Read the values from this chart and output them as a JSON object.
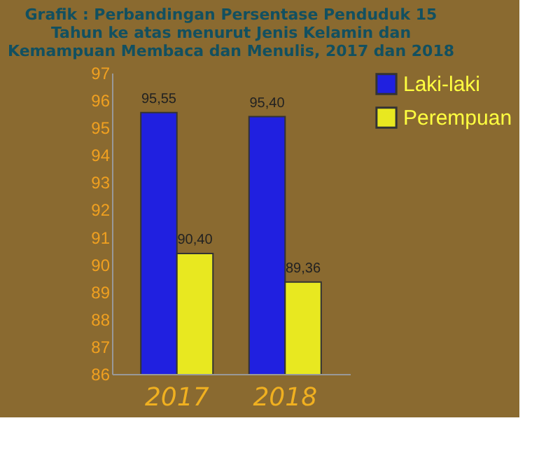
{
  "chart_data": {
    "type": "bar",
    "title": "Grafik : Perbandingan Persentase Penduduk 15\nTahun ke atas menurut Jenis Kelamin dan\nKemampuan Membaca dan Menulis, 2017 dan 2018",
    "categories": [
      "2017",
      "2018"
    ],
    "series": [
      {
        "name": "Laki-laki",
        "color": "#2020e0",
        "values": [
          95.55,
          95.4
        ],
        "value_labels": [
          "95,55",
          "95,40"
        ]
      },
      {
        "name": "Perempuan",
        "color": "#e8e820",
        "values": [
          90.4,
          89.36
        ],
        "value_labels": [
          "90,40",
          "89,36"
        ]
      }
    ],
    "ylim": [
      86,
      97
    ],
    "yticks": [
      86,
      87,
      88,
      89,
      90,
      91,
      92,
      93,
      94,
      95,
      96,
      97
    ],
    "grid": false,
    "legend": "right"
  }
}
